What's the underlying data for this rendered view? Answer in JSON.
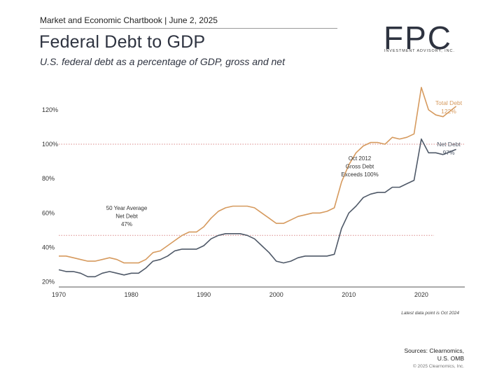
{
  "header": {
    "chartbook": "Market and Economic Chartbook | June 2, 2025",
    "title": "Federal Debt to GDP",
    "subtitle": "U.S. federal debt as a percentage of GDP, gross and net"
  },
  "logo": {
    "text": "FPC",
    "subtext": "INVESTMENT ADVISORY, INC."
  },
  "footer": {
    "footnote": "Latest data point is Oct 2024",
    "sources_line1": "Sources: Clearnomics,",
    "sources_line2": "U.S. OMB",
    "copyright": "© 2025 Clearnomics, Inc."
  },
  "colors": {
    "gross": "#d69a5e",
    "net": "#4f5968",
    "ref_line": "#d98a8a",
    "axis": "#555555"
  },
  "chart_data": {
    "type": "line",
    "x": [
      1970,
      1971,
      1972,
      1973,
      1974,
      1975,
      1976,
      1977,
      1978,
      1979,
      1980,
      1981,
      1982,
      1983,
      1984,
      1985,
      1986,
      1987,
      1988,
      1989,
      1990,
      1991,
      1992,
      1993,
      1994,
      1995,
      1996,
      1997,
      1998,
      1999,
      2000,
      2001,
      2002,
      2003,
      2004,
      2005,
      2006,
      2007,
      2008,
      2009,
      2010,
      2011,
      2012,
      2013,
      2014,
      2015,
      2016,
      2017,
      2018,
      2019,
      2020,
      2021,
      2022,
      2023,
      2024.8
    ],
    "series": [
      {
        "name": "Total Debt",
        "color": "#d69a5e",
        "values": [
          35,
          35,
          34,
          33,
          32,
          32,
          33,
          34,
          33,
          31,
          31,
          31,
          33,
          37,
          38,
          41,
          44,
          47,
          49,
          49,
          52,
          57,
          61,
          63,
          64,
          64,
          64,
          63,
          60,
          57,
          54,
          54,
          56,
          58,
          59,
          60,
          60,
          61,
          63,
          78,
          88,
          95,
          99,
          101,
          101,
          100,
          104,
          103,
          104,
          106,
          133,
          120,
          117,
          116,
          122
        ],
        "end_label": "Total Debt",
        "end_value_label": "122%"
      },
      {
        "name": "Net Debt",
        "color": "#4f5968",
        "values": [
          27,
          26,
          26,
          25,
          23,
          23,
          25,
          26,
          25,
          24,
          25,
          25,
          28,
          32,
          33,
          35,
          38,
          39,
          39,
          39,
          41,
          45,
          47,
          48,
          48,
          48,
          47,
          45,
          41,
          37,
          32,
          31,
          32,
          34,
          35,
          35,
          35,
          35,
          36,
          51,
          60,
          64,
          69,
          71,
          72,
          72,
          75,
          75,
          77,
          79,
          103,
          95,
          95,
          94,
          97
        ],
        "end_label": "Net Debt",
        "end_value_label": "97%"
      }
    ],
    "reference_lines": [
      {
        "y": 100,
        "style": "dotted",
        "color": "#d98a8a"
      },
      {
        "y": 47,
        "style": "dotted",
        "color": "#d98a8a"
      }
    ],
    "annotations": [
      {
        "lines": [
          "50 Year Average",
          "Net Debt",
          "47%"
        ]
      },
      {
        "lines": [
          "Oct 2012",
          "Gross Debt",
          "Exceeds 100%"
        ]
      }
    ],
    "x_ticks": [
      1970,
      1980,
      1990,
      2000,
      2010,
      2020
    ],
    "x_tick_labels": [
      "1970",
      "1980",
      "1990",
      "2000",
      "2010",
      "2020"
    ],
    "y_ticks": [
      20,
      40,
      60,
      80,
      100,
      120
    ],
    "y_tick_labels": [
      "20%",
      "40%",
      "60%",
      "80%",
      "100%",
      "120%"
    ],
    "xlim": [
      1970,
      2026
    ],
    "ylim": [
      17,
      135
    ],
    "grid": false
  }
}
